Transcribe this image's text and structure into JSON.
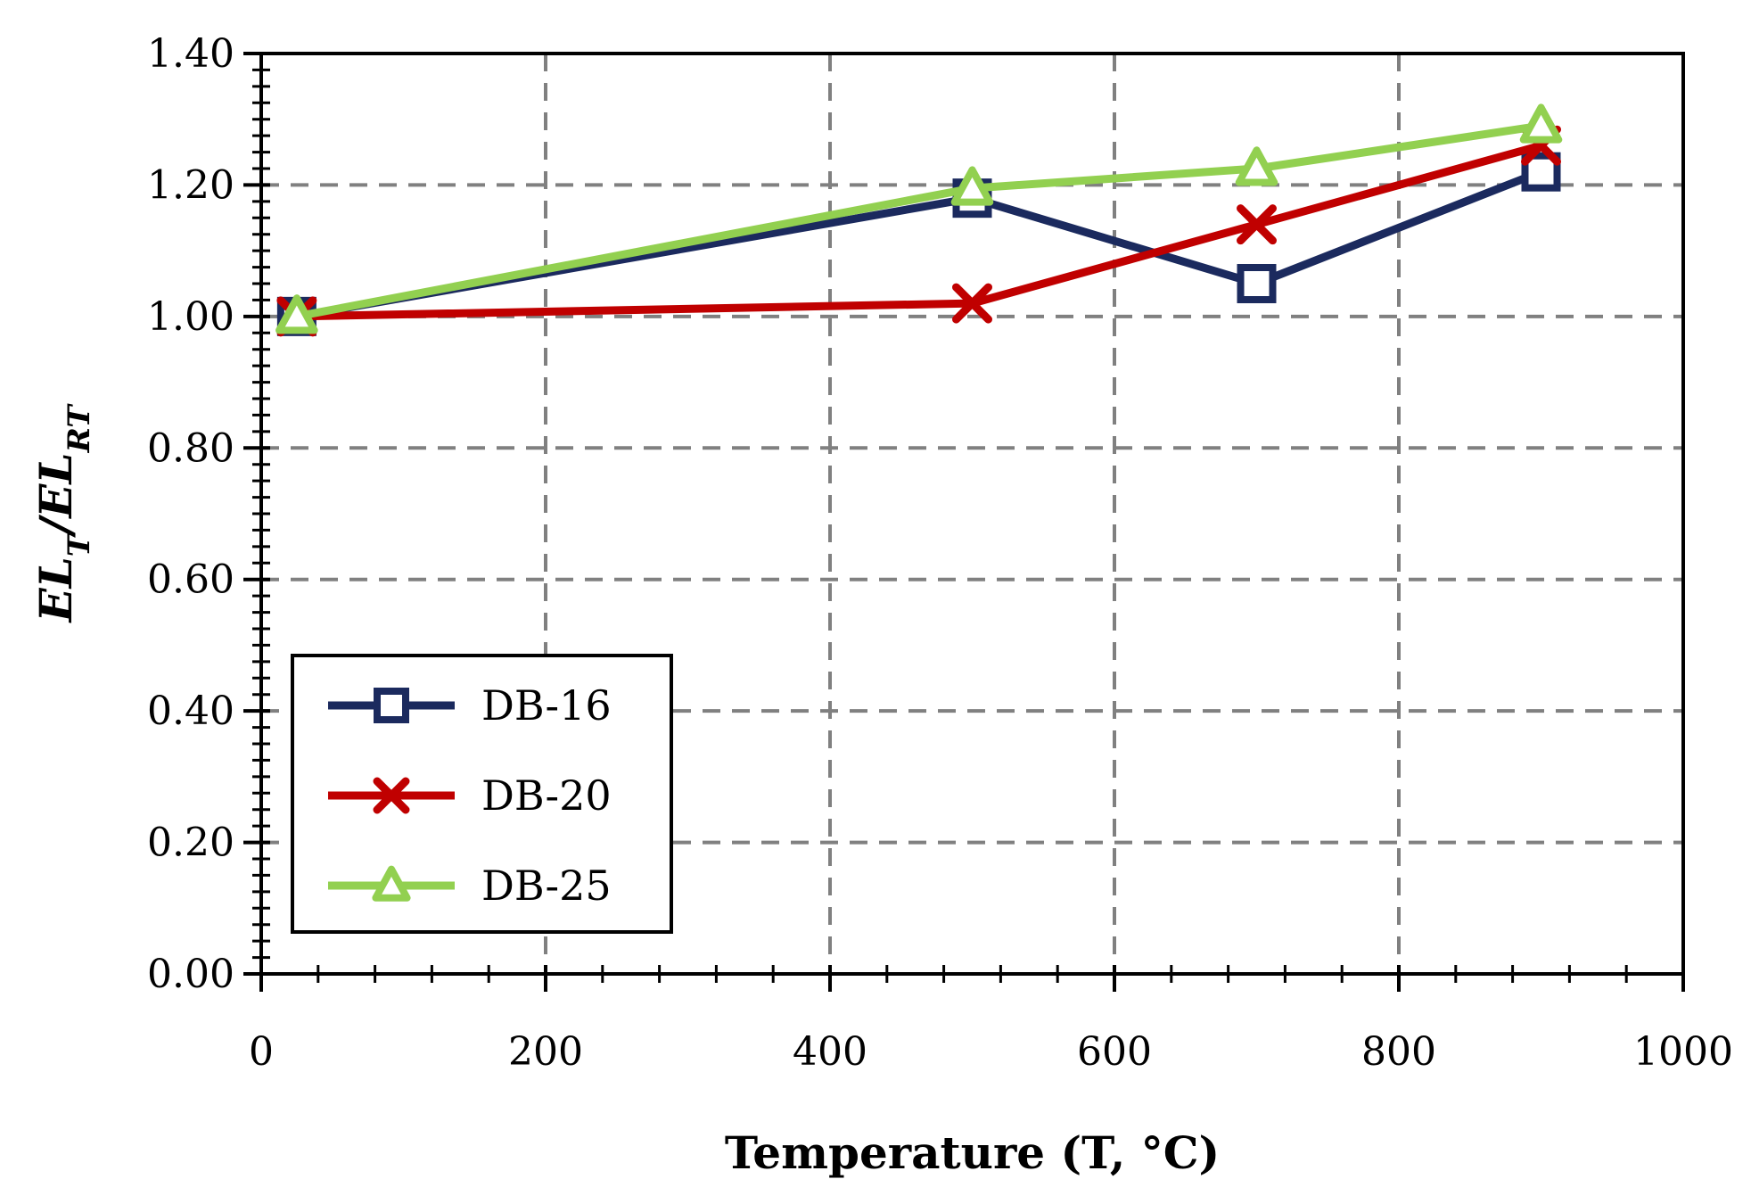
{
  "chart_data": {
    "type": "line",
    "xlabel": "Temperature (T, °C)",
    "ylabel": {
      "parts": [
        {
          "text": "EL",
          "sub": false
        },
        {
          "text": "T",
          "sub": true
        },
        {
          "text": "/EL",
          "sub": false
        },
        {
          "text": "RT",
          "sub": true
        }
      ]
    },
    "xlim": [
      0,
      1000
    ],
    "ylim": [
      0,
      1.4
    ],
    "x_ticks": [
      0,
      200,
      400,
      600,
      800,
      1000
    ],
    "x_tick_labels": [
      "0",
      "200",
      "400",
      "600",
      "800",
      "1000"
    ],
    "y_ticks": [
      0,
      0.2,
      0.4,
      0.6,
      0.8,
      1.0,
      1.2,
      1.4
    ],
    "y_tick_labels": [
      "0.00",
      "0.20",
      "0.40",
      "0.60",
      "0.80",
      "1.00",
      "1.20",
      "1.40"
    ],
    "grid": true,
    "legend_position": "bottom-left",
    "series": [
      {
        "name": "DB-16",
        "color": "#1b2a5e",
        "marker": "square",
        "x": [
          25,
          500,
          700,
          900
        ],
        "y": [
          1.0,
          1.18,
          1.05,
          1.22
        ]
      },
      {
        "name": "DB-20",
        "color": "#c00000",
        "marker": "x",
        "x": [
          25,
          500,
          700,
          900
        ],
        "y": [
          1.0,
          1.02,
          1.14,
          1.26
        ]
      },
      {
        "name": "DB-25",
        "color": "#92d050",
        "marker": "triangle",
        "x": [
          25,
          500,
          700,
          900
        ],
        "y": [
          1.0,
          1.195,
          1.225,
          1.29
        ]
      }
    ]
  }
}
